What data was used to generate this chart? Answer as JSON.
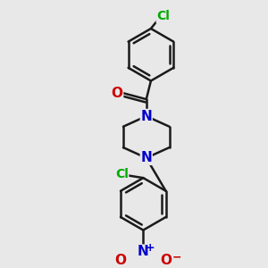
{
  "background_color": "#e8e8e8",
  "bond_color": "#1a1a1a",
  "bond_width": 1.8,
  "atom_colors": {
    "N": "#0000cc",
    "O": "#cc0000",
    "Cl": "#00aa00"
  },
  "font_size": 10,
  "figsize": [
    3.0,
    3.0
  ],
  "dpi": 100,
  "xlim": [
    -2.5,
    2.5
  ],
  "ylim": [
    -4.2,
    3.8
  ]
}
